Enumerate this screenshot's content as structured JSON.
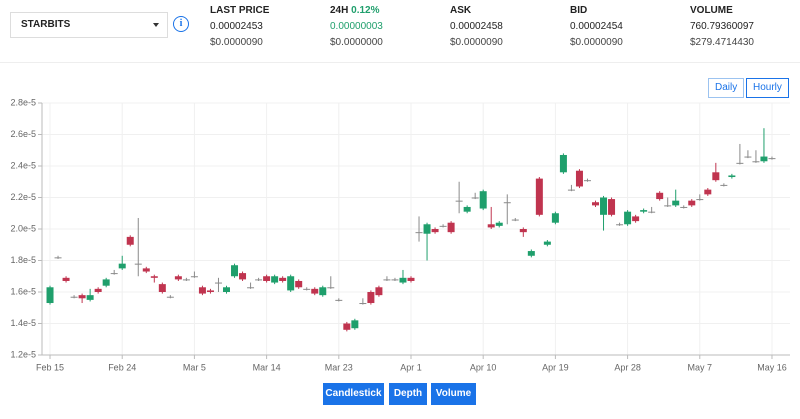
{
  "header": {
    "symbol": "STARBITS",
    "columns": [
      {
        "label": "LAST PRICE",
        "value": "0.00002453",
        "usd": "$0.0000090"
      },
      {
        "label": "24H",
        "change": "0.12%",
        "value": "0.00000003",
        "usd": "$0.0000000"
      },
      {
        "label": "ASK",
        "value": "0.00002458",
        "usd": "$0.0000090"
      },
      {
        "label": "BID",
        "value": "0.00002454",
        "usd": "$0.0000090"
      },
      {
        "label": "VOLUME",
        "value": "760.79360097",
        "usd": "$279.4714430"
      }
    ]
  },
  "range_buttons": [
    "Daily",
    "Hourly"
  ],
  "tabs": [
    "Candlestick",
    "Depth",
    "Volume"
  ],
  "chart_data": {
    "type": "candlestick",
    "up_color": "#1f9f6c",
    "down_color": "#c0344f",
    "flat_color": "#8a8a8a",
    "grid": true,
    "xlim": [
      -1,
      91
    ],
    "xticks": [
      {
        "value": 0,
        "label": "Feb 15"
      },
      {
        "value": 9,
        "label": "Feb 24"
      },
      {
        "value": 18,
        "label": "Mar 5"
      },
      {
        "value": 27,
        "label": "Mar 14"
      },
      {
        "value": 36,
        "label": "Mar 23"
      },
      {
        "value": 45,
        "label": "Apr 1"
      },
      {
        "value": 54,
        "label": "Apr 10"
      },
      {
        "value": 63,
        "label": "Apr 19"
      },
      {
        "value": 72,
        "label": "Apr 28"
      },
      {
        "value": 81,
        "label": "May 7"
      },
      {
        "value": 90,
        "label": "May 16"
      }
    ],
    "ylim": [
      1.2e-05,
      2.8e-05
    ],
    "yticks": [
      {
        "value": 1.2e-05,
        "label": "1.2e-5"
      },
      {
        "value": 1.4e-05,
        "label": "1.4e-5"
      },
      {
        "value": 1.6e-05,
        "label": "1.6e-5"
      },
      {
        "value": 1.8e-05,
        "label": "1.8e-5"
      },
      {
        "value": 2e-05,
        "label": "2.0e-5"
      },
      {
        "value": 2.2e-05,
        "label": "2.2e-5"
      },
      {
        "value": 2.4e-05,
        "label": "2.4e-5"
      },
      {
        "value": 2.6e-05,
        "label": "2.6e-5"
      },
      {
        "value": 2.8e-05,
        "label": "2.8e-5"
      }
    ],
    "x": [
      0,
      1,
      2,
      3,
      4,
      5,
      6,
      7,
      8,
      9,
      10,
      11,
      12,
      13,
      14,
      15,
      16,
      17,
      18,
      19,
      20,
      21,
      22,
      23,
      24,
      25,
      26,
      27,
      28,
      29,
      30,
      31,
      32,
      33,
      34,
      35,
      36,
      37,
      38,
      39,
      40,
      41,
      42,
      43,
      44,
      45,
      46,
      47,
      48,
      49,
      50,
      51,
      52,
      53,
      54,
      55,
      56,
      57,
      58,
      59,
      60,
      61,
      62,
      63,
      64,
      65,
      66,
      67,
      68,
      69,
      70,
      71,
      72,
      73,
      74,
      75,
      76,
      77,
      78,
      79,
      80,
      81,
      82,
      83,
      84,
      85,
      86,
      87,
      88,
      89,
      90
    ],
    "open": [
      1.53e-05,
      1.82e-05,
      1.69e-05,
      1.57e-05,
      1.58e-05,
      1.55e-05,
      1.62e-05,
      1.64e-05,
      1.72e-05,
      1.75e-05,
      1.95e-05,
      1.78e-05,
      1.75e-05,
      1.7e-05,
      1.65e-05,
      1.57e-05,
      1.7e-05,
      1.68e-05,
      1.7e-05,
      1.63e-05,
      1.61e-05,
      1.66e-05,
      1.6e-05,
      1.7e-05,
      1.72e-05,
      1.63e-05,
      1.68e-05,
      1.7e-05,
      1.66e-05,
      1.69e-05,
      1.61e-05,
      1.67e-05,
      1.62e-05,
      1.62e-05,
      1.58e-05,
      1.63e-05,
      1.55e-05,
      1.4e-05,
      1.37e-05,
      1.53e-05,
      1.6e-05,
      1.63e-05,
      1.68e-05,
      1.68e-05,
      1.66e-05,
      1.69e-05,
      1.98e-05,
      1.97e-05,
      2e-05,
      2.02e-05,
      2.04e-05,
      2.18e-05,
      2.11e-05,
      2.2e-05,
      2.13e-05,
      2.03e-05,
      2.02e-05,
      2.17e-05,
      2.06e-05,
      2e-05,
      1.83e-05,
      2.32e-05,
      1.9e-05,
      2.04e-05,
      2.36e-05,
      2.25e-05,
      2.37e-05,
      2.31e-05,
      2.17e-05,
      2.09e-05,
      2.19e-05,
      2.03e-05,
      2.03e-05,
      2.08e-05,
      2.11e-05,
      2.11e-05,
      2.23e-05,
      2.15e-05,
      2.15e-05,
      2.14e-05,
      2.18e-05,
      2.19e-05,
      2.25e-05,
      2.36e-05,
      2.28e-05,
      2.33e-05,
      2.42e-05,
      2.46e-05,
      2.43e-05,
      2.43e-05,
      2.45e-05
    ],
    "close": [
      1.63e-05,
      1.82e-05,
      1.67e-05,
      1.57e-05,
      1.56e-05,
      1.58e-05,
      1.6e-05,
      1.68e-05,
      1.72e-05,
      1.78e-05,
      1.9e-05,
      1.78e-05,
      1.73e-05,
      1.69e-05,
      1.6e-05,
      1.57e-05,
      1.68e-05,
      1.68e-05,
      1.7e-05,
      1.59e-05,
      1.6e-05,
      1.66e-05,
      1.63e-05,
      1.77e-05,
      1.68e-05,
      1.63e-05,
      1.68e-05,
      1.67e-05,
      1.7e-05,
      1.67e-05,
      1.7e-05,
      1.63e-05,
      1.62e-05,
      1.59e-05,
      1.63e-05,
      1.63e-05,
      1.55e-05,
      1.36e-05,
      1.42e-05,
      1.53e-05,
      1.53e-05,
      1.58e-05,
      1.68e-05,
      1.68e-05,
      1.69e-05,
      1.67e-05,
      1.98e-05,
      2.03e-05,
      1.98e-05,
      2.02e-05,
      1.98e-05,
      2.18e-05,
      2.14e-05,
      2.2e-05,
      2.24e-05,
      2.01e-05,
      2.04e-05,
      2.17e-05,
      2.06e-05,
      1.98e-05,
      1.86e-05,
      2.09e-05,
      1.92e-05,
      2.1e-05,
      2.47e-05,
      2.25e-05,
      2.27e-05,
      2.31e-05,
      2.15e-05,
      2.2e-05,
      2.09e-05,
      2.03e-05,
      2.11e-05,
      2.05e-05,
      2.12e-05,
      2.11e-05,
      2.19e-05,
      2.15e-05,
      2.18e-05,
      2.14e-05,
      2.15e-05,
      2.19e-05,
      2.22e-05,
      2.31e-05,
      2.28e-05,
      2.34e-05,
      2.42e-05,
      2.46e-05,
      2.43e-05,
      2.46e-05,
      2.45e-05
    ],
    "high": [
      1.64e-05,
      1.83e-05,
      1.7e-05,
      1.58e-05,
      1.59e-05,
      1.62e-05,
      1.63e-05,
      1.69e-05,
      1.74e-05,
      1.83e-05,
      1.96e-05,
      2.07e-05,
      1.76e-05,
      1.71e-05,
      1.66e-05,
      1.58e-05,
      1.71e-05,
      1.69e-05,
      1.73e-05,
      1.64e-05,
      1.62e-05,
      1.69e-05,
      1.64e-05,
      1.78e-05,
      1.73e-05,
      1.66e-05,
      1.69e-05,
      1.71e-05,
      1.71e-05,
      1.7e-05,
      1.71e-05,
      1.68e-05,
      1.63e-05,
      1.63e-05,
      1.64e-05,
      1.7e-05,
      1.56e-05,
      1.41e-05,
      1.43e-05,
      1.56e-05,
      1.61e-05,
      1.64e-05,
      1.7e-05,
      1.69e-05,
      1.74e-05,
      1.7e-05,
      2.08e-05,
      2.04e-05,
      2.01e-05,
      2.03e-05,
      2.05e-05,
      2.3e-05,
      2.15e-05,
      2.23e-05,
      2.25e-05,
      2.14e-05,
      2.05e-05,
      2.22e-05,
      2.07e-05,
      2.01e-05,
      1.87e-05,
      2.33e-05,
      1.93e-05,
      2.11e-05,
      2.48e-05,
      2.28e-05,
      2.38e-05,
      2.32e-05,
      2.18e-05,
      2.21e-05,
      2.2e-05,
      2.04e-05,
      2.12e-05,
      2.09e-05,
      2.13e-05,
      2.14e-05,
      2.24e-05,
      2.2e-05,
      2.25e-05,
      2.15e-05,
      2.19e-05,
      2.22e-05,
      2.26e-05,
      2.42e-05,
      2.29e-05,
      2.35e-05,
      2.54e-05,
      2.5e-05,
      2.5e-05,
      2.64e-05,
      2.46e-05
    ],
    "low": [
      1.52e-05,
      1.81e-05,
      1.66e-05,
      1.56e-05,
      1.53e-05,
      1.54e-05,
      1.59e-05,
      1.63e-05,
      1.71e-05,
      1.74e-05,
      1.89e-05,
      1.7e-05,
      1.72e-05,
      1.66e-05,
      1.59e-05,
      1.56e-05,
      1.67e-05,
      1.67e-05,
      1.69e-05,
      1.58e-05,
      1.59e-05,
      1.6e-05,
      1.59e-05,
      1.69e-05,
      1.67e-05,
      1.62e-05,
      1.67e-05,
      1.66e-05,
      1.65e-05,
      1.66e-05,
      1.6e-05,
      1.62e-05,
      1.61e-05,
      1.58e-05,
      1.57e-05,
      1.62e-05,
      1.54e-05,
      1.35e-05,
      1.36e-05,
      1.52e-05,
      1.52e-05,
      1.57e-05,
      1.67e-05,
      1.67e-05,
      1.65e-05,
      1.66e-05,
      1.92e-05,
      1.8e-05,
      1.97e-05,
      2.01e-05,
      1.97e-05,
      2.1e-05,
      2.1e-05,
      2.19e-05,
      2.12e-05,
      2e-05,
      2.01e-05,
      2.03e-05,
      2.05e-05,
      1.95e-05,
      1.82e-05,
      2.08e-05,
      1.89e-05,
      2.03e-05,
      2.35e-05,
      2.24e-05,
      2.26e-05,
      2.3e-05,
      2.14e-05,
      1.99e-05,
      2.08e-05,
      2.02e-05,
      2.02e-05,
      2.04e-05,
      2.1e-05,
      2.1e-05,
      2.18e-05,
      2.14e-05,
      2.14e-05,
      2.13e-05,
      2.14e-05,
      2.18e-05,
      2.21e-05,
      2.3e-05,
      2.27e-05,
      2.32e-05,
      2.41e-05,
      2.45e-05,
      2.42e-05,
      2.42e-05,
      2.44e-05
    ]
  }
}
